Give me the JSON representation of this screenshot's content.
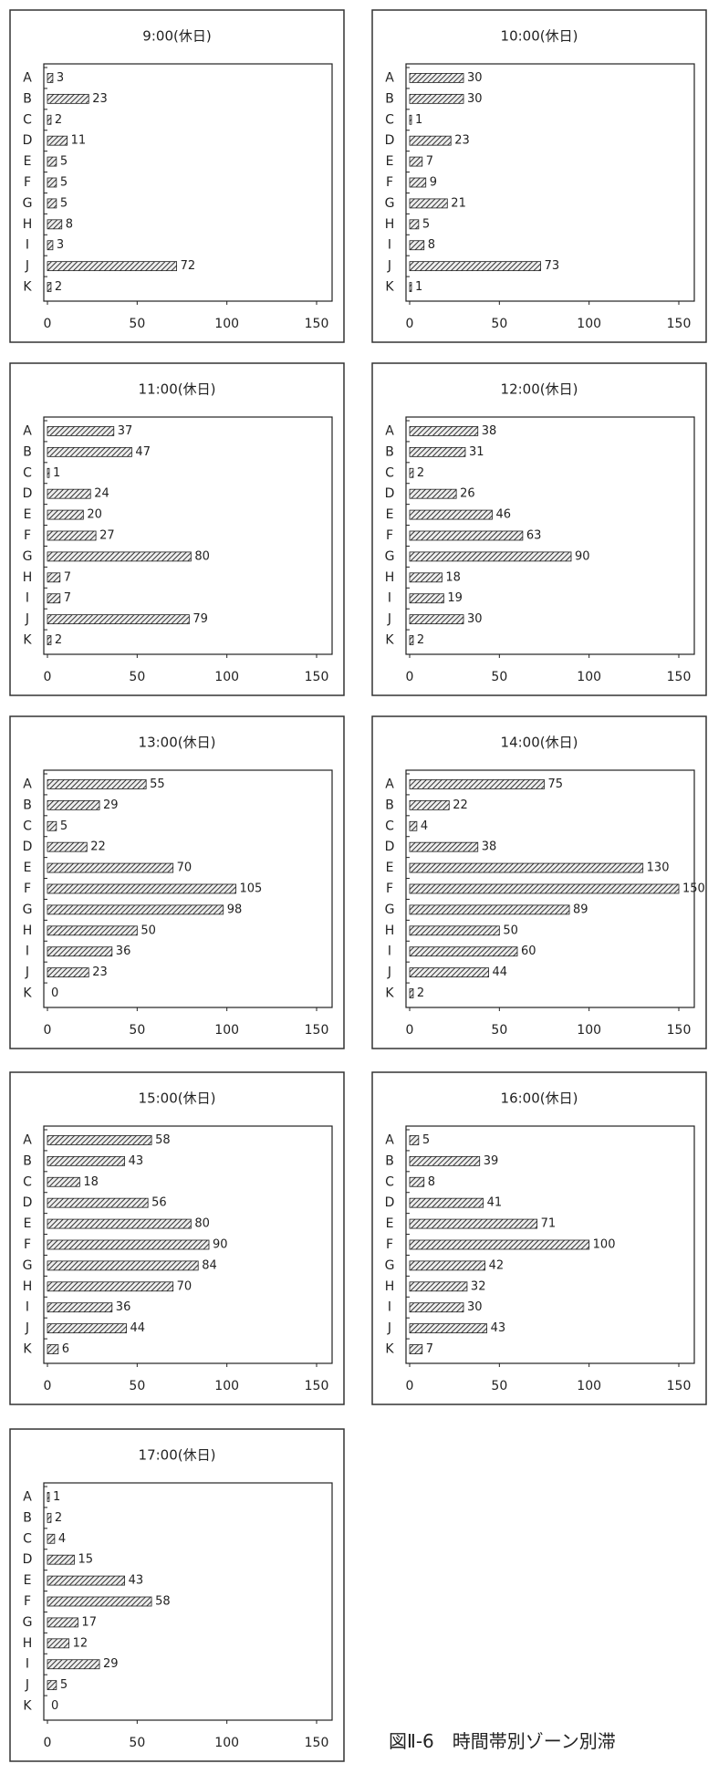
{
  "chart_data": [
    {
      "type": "bar",
      "title": "9:00(休日)",
      "categories": [
        "A",
        "B",
        "C",
        "D",
        "E",
        "F",
        "G",
        "H",
        "I",
        "J",
        "K"
      ],
      "values": [
        3,
        23,
        2,
        11,
        5,
        5,
        5,
        8,
        3,
        72,
        2
      ],
      "xlim": [
        0,
        150
      ],
      "xticks": [
        0,
        50,
        100,
        150
      ]
    },
    {
      "type": "bar",
      "title": "10:00(休日)",
      "categories": [
        "A",
        "B",
        "C",
        "D",
        "E",
        "F",
        "G",
        "H",
        "I",
        "J",
        "K"
      ],
      "values": [
        30,
        30,
        1,
        23,
        7,
        9,
        21,
        5,
        8,
        73,
        1
      ],
      "xlim": [
        0,
        150
      ],
      "xticks": [
        0,
        50,
        100,
        150
      ]
    },
    {
      "type": "bar",
      "title": "11:00(休日)",
      "categories": [
        "A",
        "B",
        "C",
        "D",
        "E",
        "F",
        "G",
        "H",
        "I",
        "J",
        "K"
      ],
      "values": [
        37,
        47,
        1,
        24,
        20,
        27,
        80,
        7,
        7,
        79,
        2
      ],
      "xlim": [
        0,
        150
      ],
      "xticks": [
        0,
        50,
        100,
        150
      ]
    },
    {
      "type": "bar",
      "title": "12:00(休日)",
      "categories": [
        "A",
        "B",
        "C",
        "D",
        "E",
        "F",
        "G",
        "H",
        "I",
        "J",
        "K"
      ],
      "values": [
        38,
        31,
        2,
        26,
        46,
        63,
        90,
        18,
        19,
        30,
        2
      ],
      "xlim": [
        0,
        150
      ],
      "xticks": [
        0,
        50,
        100,
        150
      ]
    },
    {
      "type": "bar",
      "title": "13:00(休日)",
      "categories": [
        "A",
        "B",
        "C",
        "D",
        "E",
        "F",
        "G",
        "H",
        "I",
        "J",
        "K"
      ],
      "values": [
        55,
        29,
        5,
        22,
        70,
        105,
        98,
        50,
        36,
        23,
        0
      ],
      "xlim": [
        0,
        150
      ],
      "xticks": [
        0,
        50,
        100,
        150
      ]
    },
    {
      "type": "bar",
      "title": "14:00(休日)",
      "categories": [
        "A",
        "B",
        "C",
        "D",
        "E",
        "F",
        "G",
        "H",
        "I",
        "J",
        "K"
      ],
      "values": [
        75,
        22,
        4,
        38,
        130,
        150,
        89,
        50,
        60,
        44,
        2
      ],
      "xlim": [
        0,
        150
      ],
      "xticks": [
        0,
        50,
        100,
        150
      ]
    },
    {
      "type": "bar",
      "title": "15:00(休日)",
      "categories": [
        "A",
        "B",
        "C",
        "D",
        "E",
        "F",
        "G",
        "H",
        "I",
        "J",
        "K"
      ],
      "values": [
        58,
        43,
        18,
        56,
        80,
        90,
        84,
        70,
        36,
        44,
        6
      ],
      "xlim": [
        0,
        150
      ],
      "xticks": [
        0,
        50,
        100,
        150
      ]
    },
    {
      "type": "bar",
      "title": "16:00(休日)",
      "categories": [
        "A",
        "B",
        "C",
        "D",
        "E",
        "F",
        "G",
        "H",
        "I",
        "J",
        "K"
      ],
      "values": [
        5,
        39,
        8,
        41,
        71,
        100,
        42,
        32,
        30,
        43,
        7
      ],
      "xlim": [
        0,
        150
      ],
      "xticks": [
        0,
        50,
        100,
        150
      ]
    },
    {
      "type": "bar",
      "title": "17:00(休日)",
      "categories": [
        "A",
        "B",
        "C",
        "D",
        "E",
        "F",
        "G",
        "H",
        "I",
        "J",
        "K"
      ],
      "values": [
        1,
        2,
        4,
        15,
        43,
        58,
        17,
        12,
        29,
        5,
        0
      ],
      "xlim": [
        0,
        150
      ],
      "xticks": [
        0,
        50,
        100,
        150
      ]
    }
  ],
  "caption": "図Ⅱ-6　時間帯別ゾーン別滞"
}
